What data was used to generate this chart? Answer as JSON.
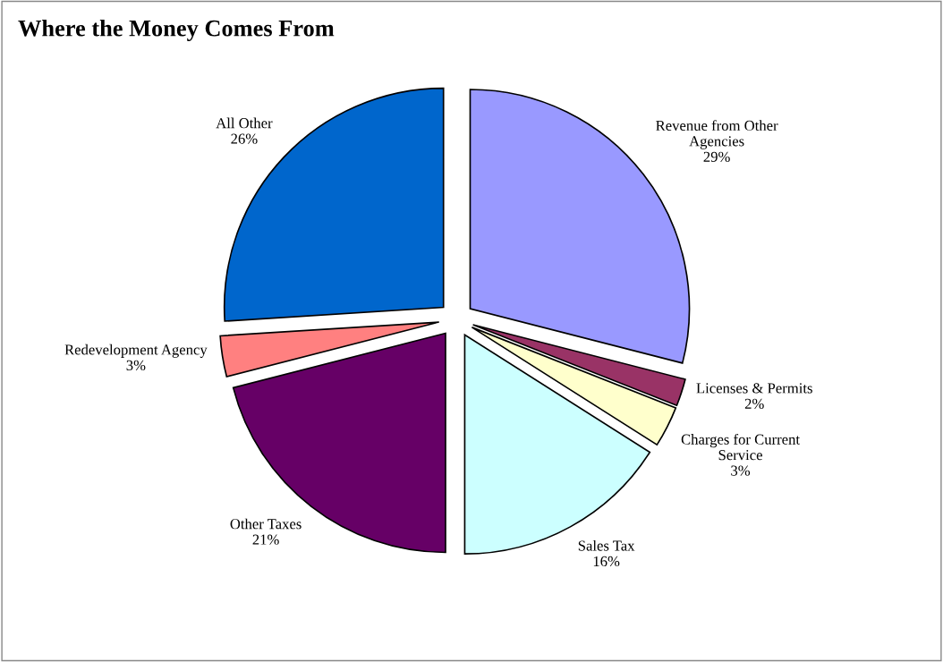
{
  "chart_data": {
    "type": "pie",
    "title": "Where the Money Comes From",
    "categories": [
      "Revenue from Other\nAgencies",
      "Licenses & Permits",
      "Charges for Current\nService",
      "Sales Tax",
      "Other Taxes",
      "Redevelopment Agency",
      "All Other"
    ],
    "values": [
      29,
      2,
      3,
      16,
      21,
      3,
      26
    ],
    "value_labels": [
      "29%",
      "2%",
      "3%",
      "16%",
      "21%",
      "3%",
      "26%"
    ],
    "colors": [
      "#9999ff",
      "#993366",
      "#ffffcc",
      "#ccffff",
      "#660066",
      "#ff8080",
      "#0066cc"
    ],
    "legend": false
  }
}
